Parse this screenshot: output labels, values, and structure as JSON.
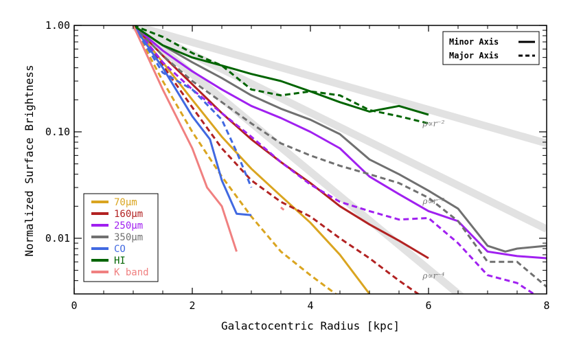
{
  "chart_data": {
    "type": "line",
    "xlabel": "Galactocentric Radius [kpc]",
    "ylabel": "Normalized Surface Brightness",
    "xlim": [
      0,
      8
    ],
    "ylim": [
      0.003,
      1.0
    ],
    "yscale": "log",
    "x_ticks": [
      0,
      2,
      4,
      6,
      8
    ],
    "x_tick_labels": [
      "0",
      "2",
      "4",
      "6",
      "8"
    ],
    "y_ticks": [
      1.0,
      0.1,
      0.01
    ],
    "y_tick_labels": [
      "1.00",
      "0.10",
      "0.01"
    ],
    "style_legend": {
      "position": "top-right",
      "entries": [
        {
          "label": "Minor Axis",
          "dash": "solid"
        },
        {
          "label": "Major Axis",
          "dash": "dashed"
        }
      ]
    },
    "color_legend": {
      "position": "bottom-left",
      "entries": [
        {
          "label": "70μm",
          "color": "#DAA520"
        },
        {
          "label": "160μm",
          "color": "#B22222"
        },
        {
          "label": "250μm",
          "color": "#A020F0"
        },
        {
          "label": "350μm",
          "color": "#707070"
        },
        {
          "label": "CO",
          "color": "#4169E1"
        },
        {
          "label": "HI",
          "color": "#006400"
        },
        {
          "label": "K band",
          "color": "#F08080"
        }
      ]
    },
    "reference_lines": [
      {
        "label": "ρ∝r⁻²",
        "x": [
          1.0,
          8.0
        ],
        "y": [
          1.0,
          0.078
        ],
        "label_at": [
          5.9,
          0.113
        ]
      },
      {
        "label": "ρ∝r⁻³",
        "x": [
          1.0,
          8.0
        ],
        "y": [
          1.0,
          0.0122
        ],
        "label_at": [
          5.9,
          0.021
        ]
      },
      {
        "label": "ρ∝r⁻⁴",
        "x": [
          1.0,
          6.8
        ],
        "y": [
          1.0,
          0.0022
        ],
        "label_at": [
          5.9,
          0.0042
        ]
      }
    ],
    "series": [
      {
        "name": "70μm",
        "axis": "minor",
        "color": "#DAA520",
        "x": [
          1.0,
          1.5,
          2.0,
          2.5,
          3.0,
          3.5,
          4.0,
          4.5,
          5.0
        ],
        "y": [
          1.0,
          0.45,
          0.2,
          0.09,
          0.045,
          0.025,
          0.014,
          0.007,
          0.003
        ]
      },
      {
        "name": "70μm",
        "axis": "major",
        "color": "#DAA520",
        "x": [
          1.0,
          1.5,
          2.0,
          2.5,
          3.0,
          3.5,
          4.0,
          4.5
        ],
        "y": [
          1.0,
          0.3,
          0.1,
          0.038,
          0.016,
          0.0075,
          0.0045,
          0.0028
        ]
      },
      {
        "name": "160μm",
        "axis": "minor",
        "color": "#B22222",
        "x": [
          1.0,
          1.5,
          2.0,
          2.5,
          3.0,
          3.5,
          4.0,
          4.5,
          5.0,
          5.5,
          6.0
        ],
        "y": [
          1.0,
          0.52,
          0.28,
          0.15,
          0.085,
          0.052,
          0.033,
          0.02,
          0.0135,
          0.0095,
          0.0065
        ]
      },
      {
        "name": "160μm",
        "axis": "major",
        "color": "#B22222",
        "x": [
          1.0,
          1.5,
          2.0,
          2.5,
          3.0,
          3.5,
          4.0,
          4.5,
          5.0,
          5.5,
          5.9
        ],
        "y": [
          1.0,
          0.42,
          0.17,
          0.07,
          0.035,
          0.022,
          0.016,
          0.01,
          0.0065,
          0.004,
          0.0028
        ]
      },
      {
        "name": "250μm",
        "axis": "minor",
        "color": "#A020F0",
        "x": [
          1.0,
          1.5,
          2.0,
          2.5,
          3.0,
          3.5,
          4.0,
          4.5,
          5.0,
          5.5,
          6.0,
          6.5,
          7.0,
          7.5,
          8.0
        ],
        "y": [
          1.0,
          0.58,
          0.37,
          0.25,
          0.175,
          0.135,
          0.1,
          0.07,
          0.038,
          0.026,
          0.018,
          0.0145,
          0.0075,
          0.0068,
          0.0065
        ]
      },
      {
        "name": "250μm",
        "axis": "major",
        "color": "#A020F0",
        "x": [
          1.0,
          1.5,
          2.0,
          2.5,
          3.0,
          3.5,
          4.0,
          4.5,
          5.0,
          5.5,
          6.0,
          6.5,
          7.0,
          7.5,
          8.0
        ],
        "y": [
          1.0,
          0.45,
          0.25,
          0.15,
          0.09,
          0.052,
          0.032,
          0.022,
          0.018,
          0.015,
          0.0155,
          0.009,
          0.0045,
          0.0038,
          0.0025
        ]
      },
      {
        "name": "350μm",
        "axis": "minor",
        "color": "#707070",
        "x": [
          1.0,
          1.5,
          2.0,
          2.5,
          3.0,
          3.5,
          4.0,
          4.5,
          5.0,
          5.5,
          6.0,
          6.5,
          7.0,
          7.3,
          7.5,
          8.0
        ],
        "y": [
          1.0,
          0.65,
          0.45,
          0.32,
          0.22,
          0.165,
          0.13,
          0.095,
          0.055,
          0.04,
          0.028,
          0.019,
          0.0085,
          0.0075,
          0.008,
          0.0085
        ]
      },
      {
        "name": "350μm",
        "axis": "major",
        "color": "#707070",
        "x": [
          1.0,
          1.5,
          2.0,
          2.5,
          3.0,
          3.5,
          4.0,
          4.5,
          5.0,
          5.5,
          6.0,
          6.5,
          7.0,
          7.5,
          8.0
        ],
        "y": [
          1.0,
          0.52,
          0.3,
          0.19,
          0.12,
          0.078,
          0.06,
          0.048,
          0.04,
          0.033,
          0.024,
          0.0145,
          0.006,
          0.006,
          0.0035
        ]
      },
      {
        "name": "CO",
        "axis": "minor",
        "color": "#4169E1",
        "x": [
          1.0,
          1.5,
          2.0,
          2.3,
          2.5,
          2.75,
          3.0
        ],
        "y": [
          1.0,
          0.4,
          0.14,
          0.085,
          0.035,
          0.017,
          0.0165
        ]
      },
      {
        "name": "CO",
        "axis": "major",
        "color": "#4169E1",
        "x": [
          1.0,
          1.5,
          2.0,
          2.5,
          2.75,
          3.0
        ],
        "y": [
          1.0,
          0.36,
          0.25,
          0.13,
          0.065,
          0.03
        ]
      },
      {
        "name": "HI",
        "axis": "minor",
        "color": "#006400",
        "x": [
          1.0,
          1.5,
          2.0,
          2.5,
          3.0,
          3.5,
          4.0,
          4.5,
          5.0,
          5.5,
          6.0
        ],
        "y": [
          1.0,
          0.65,
          0.5,
          0.42,
          0.35,
          0.3,
          0.24,
          0.19,
          0.155,
          0.175,
          0.145
        ]
      },
      {
        "name": "HI",
        "axis": "major",
        "color": "#006400",
        "x": [
          1.0,
          1.5,
          2.0,
          2.5,
          3.0,
          3.5,
          4.0,
          4.5,
          5.0,
          5.5,
          6.0
        ],
        "y": [
          1.0,
          0.78,
          0.55,
          0.42,
          0.25,
          0.22,
          0.24,
          0.22,
          0.16,
          0.14,
          0.12
        ]
      },
      {
        "name": "K band",
        "axis": "minor",
        "color": "#F08080",
        "x": [
          1.0,
          1.5,
          2.0,
          2.25,
          2.5,
          2.75
        ],
        "y": [
          1.0,
          0.25,
          0.07,
          0.03,
          0.02,
          0.0075
        ]
      },
      {
        "name": "K band",
        "axis": "major",
        "color": "#F08080",
        "x": [
          3.5,
          3.55
        ],
        "y": [
          0.0195,
          0.0185
        ]
      }
    ]
  }
}
